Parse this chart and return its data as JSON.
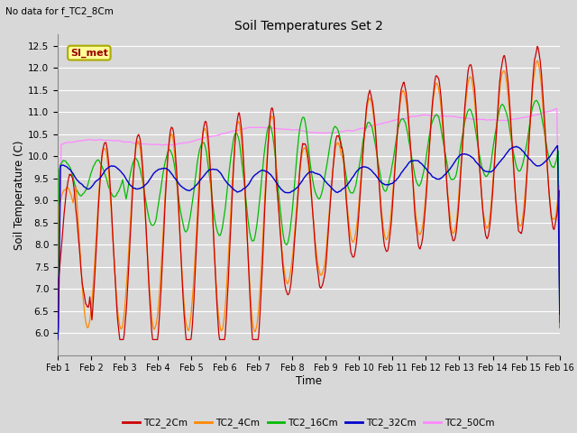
{
  "title": "Soil Temperatures Set 2",
  "subtitle": "No data for f_TC2_8Cm",
  "xlabel": "Time",
  "ylabel": "Soil Temperature (C)",
  "ylim": [
    5.5,
    12.75
  ],
  "yticks": [
    6.0,
    6.5,
    7.0,
    7.5,
    8.0,
    8.5,
    9.0,
    9.5,
    10.0,
    10.5,
    11.0,
    11.5,
    12.0,
    12.5
  ],
  "series_colors": {
    "TC2_2Cm": "#cc0000",
    "TC2_4Cm": "#ff8800",
    "TC2_16Cm": "#00bb00",
    "TC2_32Cm": "#0000cc",
    "TC2_50Cm": "#ff88ff"
  },
  "legend_label": "SI_met",
  "legend_box_color": "#ffff99",
  "legend_box_edge": "#aaaa00",
  "bg_color": "#d8d8d8",
  "plot_bg_color": "#d8d8d8",
  "grid_color": "#ffffff",
  "n_points": 720
}
